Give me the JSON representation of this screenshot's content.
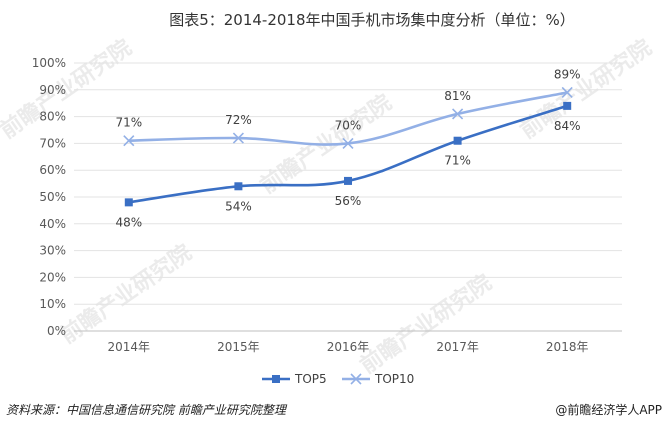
{
  "chart_data": {
    "type": "line",
    "title": "图表5：2014-2018年中国手机市场集中度分析（单位：%）",
    "categories": [
      "2014年",
      "2015年",
      "2016年",
      "2017年",
      "2018年"
    ],
    "ylim": [
      0,
      100
    ],
    "yticks": [
      "0%",
      "10%",
      "20%",
      "30%",
      "40%",
      "50%",
      "60%",
      "70%",
      "80%",
      "90%",
      "100%"
    ],
    "series": [
      {
        "name": "TOP5",
        "values": [
          48,
          54,
          56,
          71,
          84
        ],
        "labels": [
          "48%",
          "54%",
          "56%",
          "71%",
          "84%"
        ],
        "color": "#3a6fc4",
        "marker": "square"
      },
      {
        "name": "TOP10",
        "values": [
          71,
          72,
          70,
          81,
          89
        ],
        "labels": [
          "71%",
          "72%",
          "70%",
          "81%",
          "89%"
        ],
        "color": "#93b0e6",
        "marker": "x"
      }
    ],
    "legend_position": "bottom",
    "grid": "horizontal"
  },
  "footer": {
    "source": "资料来源：中国信息通信研究院 前瞻产业研究院整理",
    "credit": "@前瞻经济学人APP"
  },
  "watermark": "前瞻产业研究院"
}
